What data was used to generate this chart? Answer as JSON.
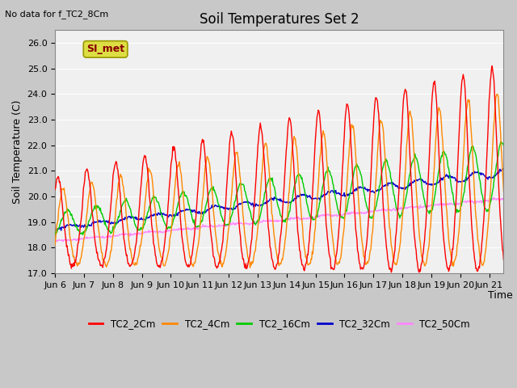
{
  "title": "Soil Temperatures Set 2",
  "subtitle": "No data for f_TC2_8Cm",
  "ylabel": "Soil Temperature (C)",
  "xlabel": "Time",
  "annotation": "SI_met",
  "ylim": [
    17.0,
    26.5
  ],
  "yticks": [
    17.0,
    18.0,
    19.0,
    20.0,
    21.0,
    22.0,
    23.0,
    24.0,
    25.0,
    26.0
  ],
  "xtick_labels": [
    "Jun 6",
    "Jun 7",
    "Jun 8",
    "Jun 9",
    "Jun 10",
    "Jun 11",
    "Jun 12",
    "Jun 13",
    "Jun 14",
    "Jun 15",
    "Jun 16",
    "Jun 17",
    "Jun 18",
    "Jun 19",
    "Jun 20",
    "Jun 21"
  ],
  "series_names": [
    "TC2_2Cm",
    "TC2_4Cm",
    "TC2_16Cm",
    "TC2_32Cm",
    "TC2_50Cm"
  ],
  "series_colors": [
    "#ff0000",
    "#ff8800",
    "#00cc00",
    "#0000cc",
    "#ff88ff"
  ],
  "line_width": 1.0,
  "plot_bg_color": "#f0f0f0",
  "grid_color": "#ffffff",
  "title_fontsize": 12,
  "label_fontsize": 9,
  "tick_fontsize": 8
}
